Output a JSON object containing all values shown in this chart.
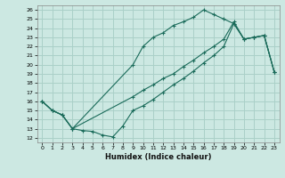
{
  "xlabel": "Humidex (Indice chaleur)",
  "bg_color": "#cce8e2",
  "grid_color": "#aad0c8",
  "line_color": "#1a6b5a",
  "xlim": [
    -0.5,
    23.5
  ],
  "ylim": [
    11.5,
    26.5
  ],
  "xticks": [
    0,
    1,
    2,
    3,
    4,
    5,
    6,
    7,
    8,
    9,
    10,
    11,
    12,
    13,
    14,
    15,
    16,
    17,
    18,
    19,
    20,
    21,
    22,
    23
  ],
  "yticks": [
    12,
    13,
    14,
    15,
    16,
    17,
    18,
    19,
    20,
    21,
    22,
    23,
    24,
    25,
    26
  ],
  "line1_x": [
    0,
    1,
    2,
    3,
    9,
    10,
    11,
    12,
    13,
    14,
    15,
    16,
    17,
    18,
    19,
    20,
    21,
    22,
    23
  ],
  "line1_y": [
    16.0,
    15.0,
    14.5,
    13.0,
    20.0,
    22.0,
    23.0,
    23.5,
    24.3,
    24.7,
    25.2,
    26.0,
    25.5,
    25.0,
    24.5,
    22.8,
    23.0,
    23.2,
    19.2
  ],
  "line2_x": [
    0,
    1,
    2,
    3,
    9,
    10,
    11,
    12,
    13,
    14,
    15,
    16,
    17,
    18,
    19,
    20,
    21,
    22,
    23
  ],
  "line2_y": [
    16.0,
    15.0,
    14.5,
    13.0,
    16.5,
    17.2,
    17.8,
    18.5,
    19.0,
    19.8,
    20.5,
    21.3,
    22.0,
    22.8,
    24.7,
    22.8,
    23.0,
    23.2,
    19.2
  ],
  "line3_x": [
    0,
    1,
    2,
    3,
    4,
    5,
    6,
    7,
    8,
    9,
    10,
    11,
    12,
    13,
    14,
    15,
    16,
    17,
    18,
    19,
    20,
    21,
    22,
    23
  ],
  "line3_y": [
    16.0,
    15.0,
    14.5,
    13.0,
    12.8,
    12.7,
    12.3,
    12.1,
    13.3,
    15.0,
    15.5,
    16.2,
    17.0,
    17.8,
    18.5,
    19.3,
    20.2,
    21.0,
    22.0,
    24.5,
    22.8,
    23.0,
    23.2,
    19.2
  ]
}
